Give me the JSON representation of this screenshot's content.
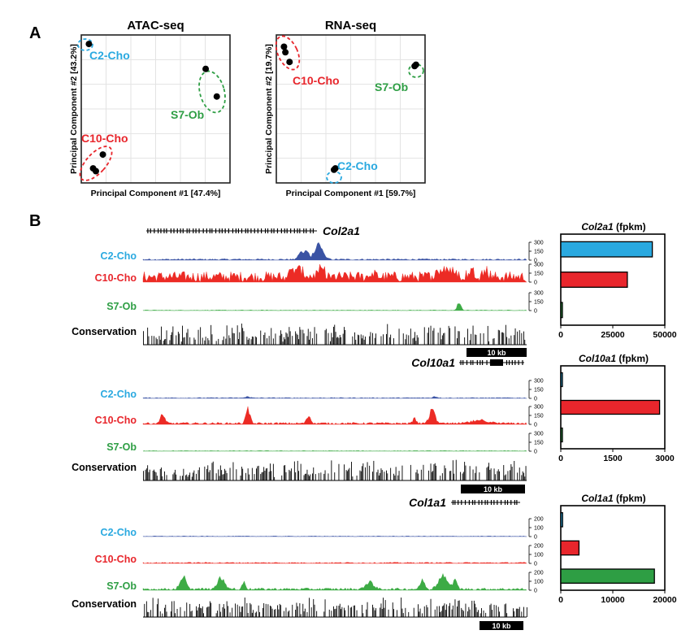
{
  "panel_labels": {
    "a": "A",
    "b": "B"
  },
  "colors": {
    "c2": "#2aa9e0",
    "c10": "#e8262c",
    "s7": "#2e9e44",
    "c2_track": "#3a53a4",
    "c10_track": "#ec2b25",
    "s7_track": "#3dab45",
    "black": "#000000",
    "grid": "#e3e3e3"
  },
  "chart_data": [
    {
      "type": "scatter",
      "title": "ATAC-seq",
      "xlabel": "Principal Component #1 [47.4%]",
      "ylabel": "Principal Component #2 [43.2%]",
      "groups": [
        {
          "name": "C2-Cho",
          "color_key": "c2",
          "points": [
            [
              0.02,
              0.97
            ]
          ]
        },
        {
          "name": "S7-Ob",
          "color_key": "s7",
          "points": [
            [
              0.86,
              0.79
            ],
            [
              0.94,
              0.59
            ]
          ]
        },
        {
          "name": "C10-Cho",
          "color_key": "c10",
          "points": [
            [
              0.12,
              0.17
            ],
            [
              0.05,
              0.07
            ],
            [
              0.07,
              0.05
            ]
          ]
        }
      ]
    },
    {
      "type": "scatter",
      "title": "RNA-seq",
      "xlabel": "Principal Component #1 [59.7%]",
      "ylabel": "Principal Component #2 [19.7%]",
      "groups": [
        {
          "name": "C10-Cho",
          "color_key": "c10",
          "points": [
            [
              0.02,
              0.95
            ],
            [
              0.03,
              0.91
            ],
            [
              0.06,
              0.84
            ]
          ]
        },
        {
          "name": "S7-Ob",
          "color_key": "s7",
          "points": [
            [
              0.96,
              0.81
            ],
            [
              0.97,
              0.82
            ]
          ]
        },
        {
          "name": "C2-Cho",
          "color_key": "c2",
          "points": [
            [
              0.38,
              0.06
            ],
            [
              0.39,
              0.07
            ]
          ]
        }
      ]
    },
    {
      "type": "bar",
      "title": "Col2a1",
      "title_suffix": "(fpkm)",
      "categories": [
        "C2-Cho",
        "C10-Cho",
        "S7-Ob"
      ],
      "values": [
        44000,
        32000,
        600
      ],
      "xlim": [
        0,
        50000
      ],
      "xticks": [
        "0",
        "25000",
        "50000"
      ]
    },
    {
      "type": "bar",
      "title": "Col10a1",
      "title_suffix": "(fpkm)",
      "categories": [
        "C2-Cho",
        "C10-Cho",
        "S7-Ob"
      ],
      "values": [
        35,
        2850,
        5
      ],
      "xlim": [
        0,
        3000
      ],
      "xticks": [
        "0",
        "1500",
        "3000"
      ]
    },
    {
      "type": "bar",
      "title": "Col1a1",
      "title_suffix": "(fpkm)",
      "categories": [
        "C2-Cho",
        "C10-Cho",
        "S7-Ob"
      ],
      "values": [
        350,
        3500,
        18000
      ],
      "xlim": [
        0,
        20000
      ],
      "xticks": [
        "0",
        "10000",
        "20000"
      ]
    }
  ],
  "genes": [
    {
      "name": "Col2a1",
      "scale_label": "10 kb",
      "track_ticks": [
        "300",
        "150",
        "0"
      ],
      "tracks": [
        {
          "label": "C2-Cho",
          "color_key": "c2"
        },
        {
          "label": "C10-Cho",
          "color_key": "c10"
        },
        {
          "label": "S7-Ob",
          "color_key": "s7"
        }
      ],
      "conservation_label": "Conservation"
    },
    {
      "name": "Col10a1",
      "scale_label": "10 kb",
      "track_ticks": [
        "300",
        "150",
        "0"
      ],
      "tracks": [
        {
          "label": "C2-Cho",
          "color_key": "c2"
        },
        {
          "label": "C10-Cho",
          "color_key": "c10"
        },
        {
          "label": "S7-Ob",
          "color_key": "s7"
        }
      ],
      "conservation_label": "Conservation"
    },
    {
      "name": "Col1a1",
      "scale_label": "10 kb",
      "track_ticks": [
        "200",
        "100",
        "0"
      ],
      "tracks": [
        {
          "label": "C2-Cho",
          "color_key": "c2"
        },
        {
          "label": "C10-Cho",
          "color_key": "c10"
        },
        {
          "label": "S7-Ob",
          "color_key": "s7"
        }
      ],
      "conservation_label": "Conservation"
    }
  ]
}
